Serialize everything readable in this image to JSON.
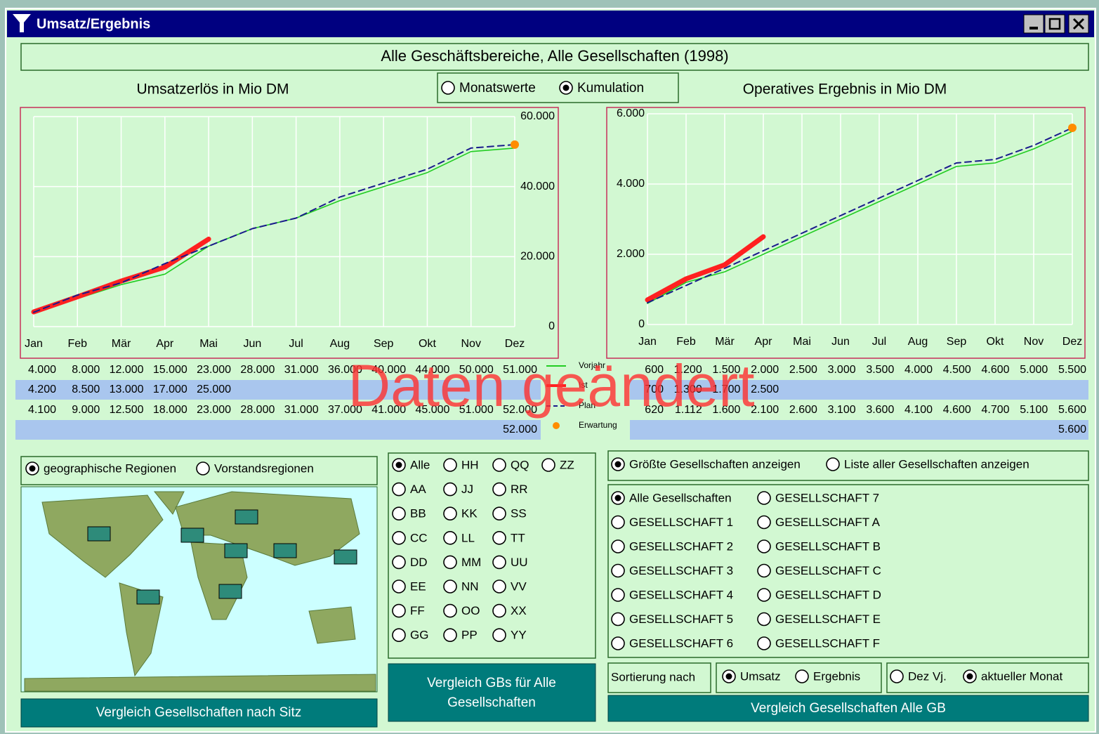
{
  "window": {
    "title": "Umsatz/Ergebnis"
  },
  "header": "Alle Geschäftsbereiche,  Alle Gesellschaften (1998)",
  "view_mode": {
    "options": [
      "Monatswerte",
      "Kumulation"
    ],
    "selected": 1
  },
  "chart_data": [
    {
      "type": "line",
      "title": "Umsatzerlös in Mio DM",
      "categories": [
        "Jan",
        "Feb",
        "Mär",
        "Apr",
        "Mai",
        "Jun",
        "Jul",
        "Aug",
        "Sep",
        "Okt",
        "Nov",
        "Dez"
      ],
      "ylim": [
        0,
        60000
      ],
      "yticks": [
        0,
        {
          "value": 20000,
          "label": "20.000"
        },
        {
          "value": 40000,
          "label": "40.000"
        },
        {
          "value": 60000,
          "label": "60.000"
        }
      ],
      "grid": true,
      "series": [
        {
          "name": "Vorjahr",
          "color": "#22cc22",
          "values": [
            4000,
            8000,
            12000,
            15000,
            23000,
            28000,
            31000,
            36000,
            40000,
            44000,
            50000,
            51000
          ],
          "value_labels": [
            "4.000",
            "8.000",
            "12.000",
            "15.000",
            "23.000",
            "28.000",
            "31.000",
            "36.000",
            "40.000",
            "44.000",
            "50.000",
            "51.000"
          ]
        },
        {
          "name": "Ist",
          "color": "#ff2020",
          "values": [
            4200,
            8500,
            13000,
            17000,
            25000,
            null,
            null,
            null,
            null,
            null,
            null,
            null
          ],
          "value_labels": [
            "4.200",
            "8.500",
            "13.000",
            "17.000",
            "25.000",
            null,
            null,
            null,
            null,
            null,
            null,
            null
          ]
        },
        {
          "name": "Plan",
          "color": "#1a1a8c",
          "dashed": true,
          "values": [
            4100,
            9000,
            12500,
            18000,
            23000,
            28000,
            31000,
            37000,
            41000,
            45000,
            51000,
            52000
          ],
          "value_labels": [
            "4.100",
            "9.000",
            "12.500",
            "18.000",
            "23.000",
            "28.000",
            "31.000",
            "37.000",
            "41.000",
            "45.000",
            "51.000",
            "52.000"
          ]
        },
        {
          "name": "Erwartung",
          "color": "#ff8c00",
          "marker": "dot",
          "values": [
            null,
            null,
            null,
            null,
            null,
            null,
            null,
            null,
            null,
            null,
            null,
            52000
          ],
          "value_labels": [
            null,
            null,
            null,
            null,
            null,
            null,
            null,
            null,
            null,
            null,
            null,
            "52.000"
          ]
        }
      ]
    },
    {
      "type": "line",
      "title": "Operatives Ergebnis in Mio DM",
      "categories": [
        "Jan",
        "Feb",
        "Mär",
        "Apr",
        "Mai",
        "Jun",
        "Jul",
        "Aug",
        "Sep",
        "Okt",
        "Nov",
        "Dez"
      ],
      "ylim": [
        0,
        6000
      ],
      "yticks": [
        0,
        {
          "value": 2000,
          "label": "2.000"
        },
        {
          "value": 4000,
          "label": "4.000"
        },
        {
          "value": 6000,
          "label": "6.000"
        }
      ],
      "grid": true,
      "series": [
        {
          "color": "#22cc22",
          "values": [
            600,
            1200,
            1500,
            2000,
            2500,
            3000,
            3500,
            4000,
            4500,
            4600,
            5000,
            5500
          ],
          "value_labels": [
            "600",
            "1.200",
            "1.500",
            "2.000",
            "2.500",
            "3.000",
            "3.500",
            "4.000",
            "4.500",
            "4.600",
            "5.000",
            "5.500"
          ]
        },
        {
          "color": "#ff2020",
          "values": [
            700,
            1300,
            1700,
            2500,
            null,
            null,
            null,
            null,
            null,
            null,
            null,
            null
          ],
          "value_labels": [
            "700",
            "1.300",
            "1.700",
            "2.500",
            null,
            null,
            null,
            null,
            null,
            null,
            null,
            null
          ]
        },
        {
          "color": "#1a1a8c",
          "dashed": true,
          "values": [
            620,
            1112,
            1600,
            2100,
            2600,
            3100,
            3600,
            4100,
            4600,
            4700,
            5100,
            5600
          ],
          "value_labels": [
            "620",
            "1.112",
            "1.600",
            "2.100",
            "2.600",
            "3.100",
            "3.600",
            "4.100",
            "4.600",
            "4.700",
            "5.100",
            "5.600"
          ]
        },
        {
          "color": "#ff8c00",
          "marker": "dot",
          "values": [
            null,
            null,
            null,
            null,
            null,
            null,
            null,
            null,
            null,
            null,
            null,
            5600
          ],
          "value_labels": [
            null,
            null,
            null,
            null,
            null,
            null,
            null,
            null,
            null,
            null,
            null,
            "5.600"
          ]
        }
      ]
    }
  ],
  "overlay": "Daten geändert",
  "region_mode": {
    "options": [
      "geographische Regionen",
      "Vorstandsregionen"
    ],
    "selected": 0
  },
  "map_button": "Vergleich Gesellschaften nach Sitz",
  "business_units": {
    "options": [
      "Alle",
      "HH",
      "QQ",
      "ZZ",
      "AA",
      "JJ",
      "RR",
      "BB",
      "KK",
      "SS",
      "CC",
      "LL",
      "TT",
      "DD",
      "MM",
      "UU",
      "EE",
      "NN",
      "VV",
      "FF",
      "OO",
      "XX",
      "GG",
      "PP",
      "YY"
    ],
    "selected": 0
  },
  "gb_button": [
    "Vergleich GBs für  Alle",
    "Gesellschaften"
  ],
  "company_mode": {
    "options": [
      "Größte Gesellschaften anzeigen",
      "Liste aller Gesellschaften anzeigen"
    ],
    "selected": 0
  },
  "companies": {
    "options": [
      "Alle Gesellschaften",
      "GESELLSCHAFT 1",
      "GESELLSCHAFT 2",
      "GESELLSCHAFT 3",
      "GESELLSCHAFT 4",
      "GESELLSCHAFT 5",
      "GESELLSCHAFT 6",
      "GESELLSCHAFT 7",
      "GESELLSCHAFT A",
      "GESELLSCHAFT B",
      "GESELLSCHAFT C",
      "GESELLSCHAFT D",
      "GESELLSCHAFT E",
      "GESELLSCHAFT F"
    ],
    "selected": 0
  },
  "sort_label": "Sortierung nach",
  "sort_by": {
    "options": [
      "Umsatz",
      "Ergebnis"
    ],
    "selected": 0
  },
  "period": {
    "options": [
      "Dez Vj.",
      "aktueller Monat"
    ],
    "selected": 1
  },
  "company_button": "Vergleich Gesellschaften Alle GB"
}
